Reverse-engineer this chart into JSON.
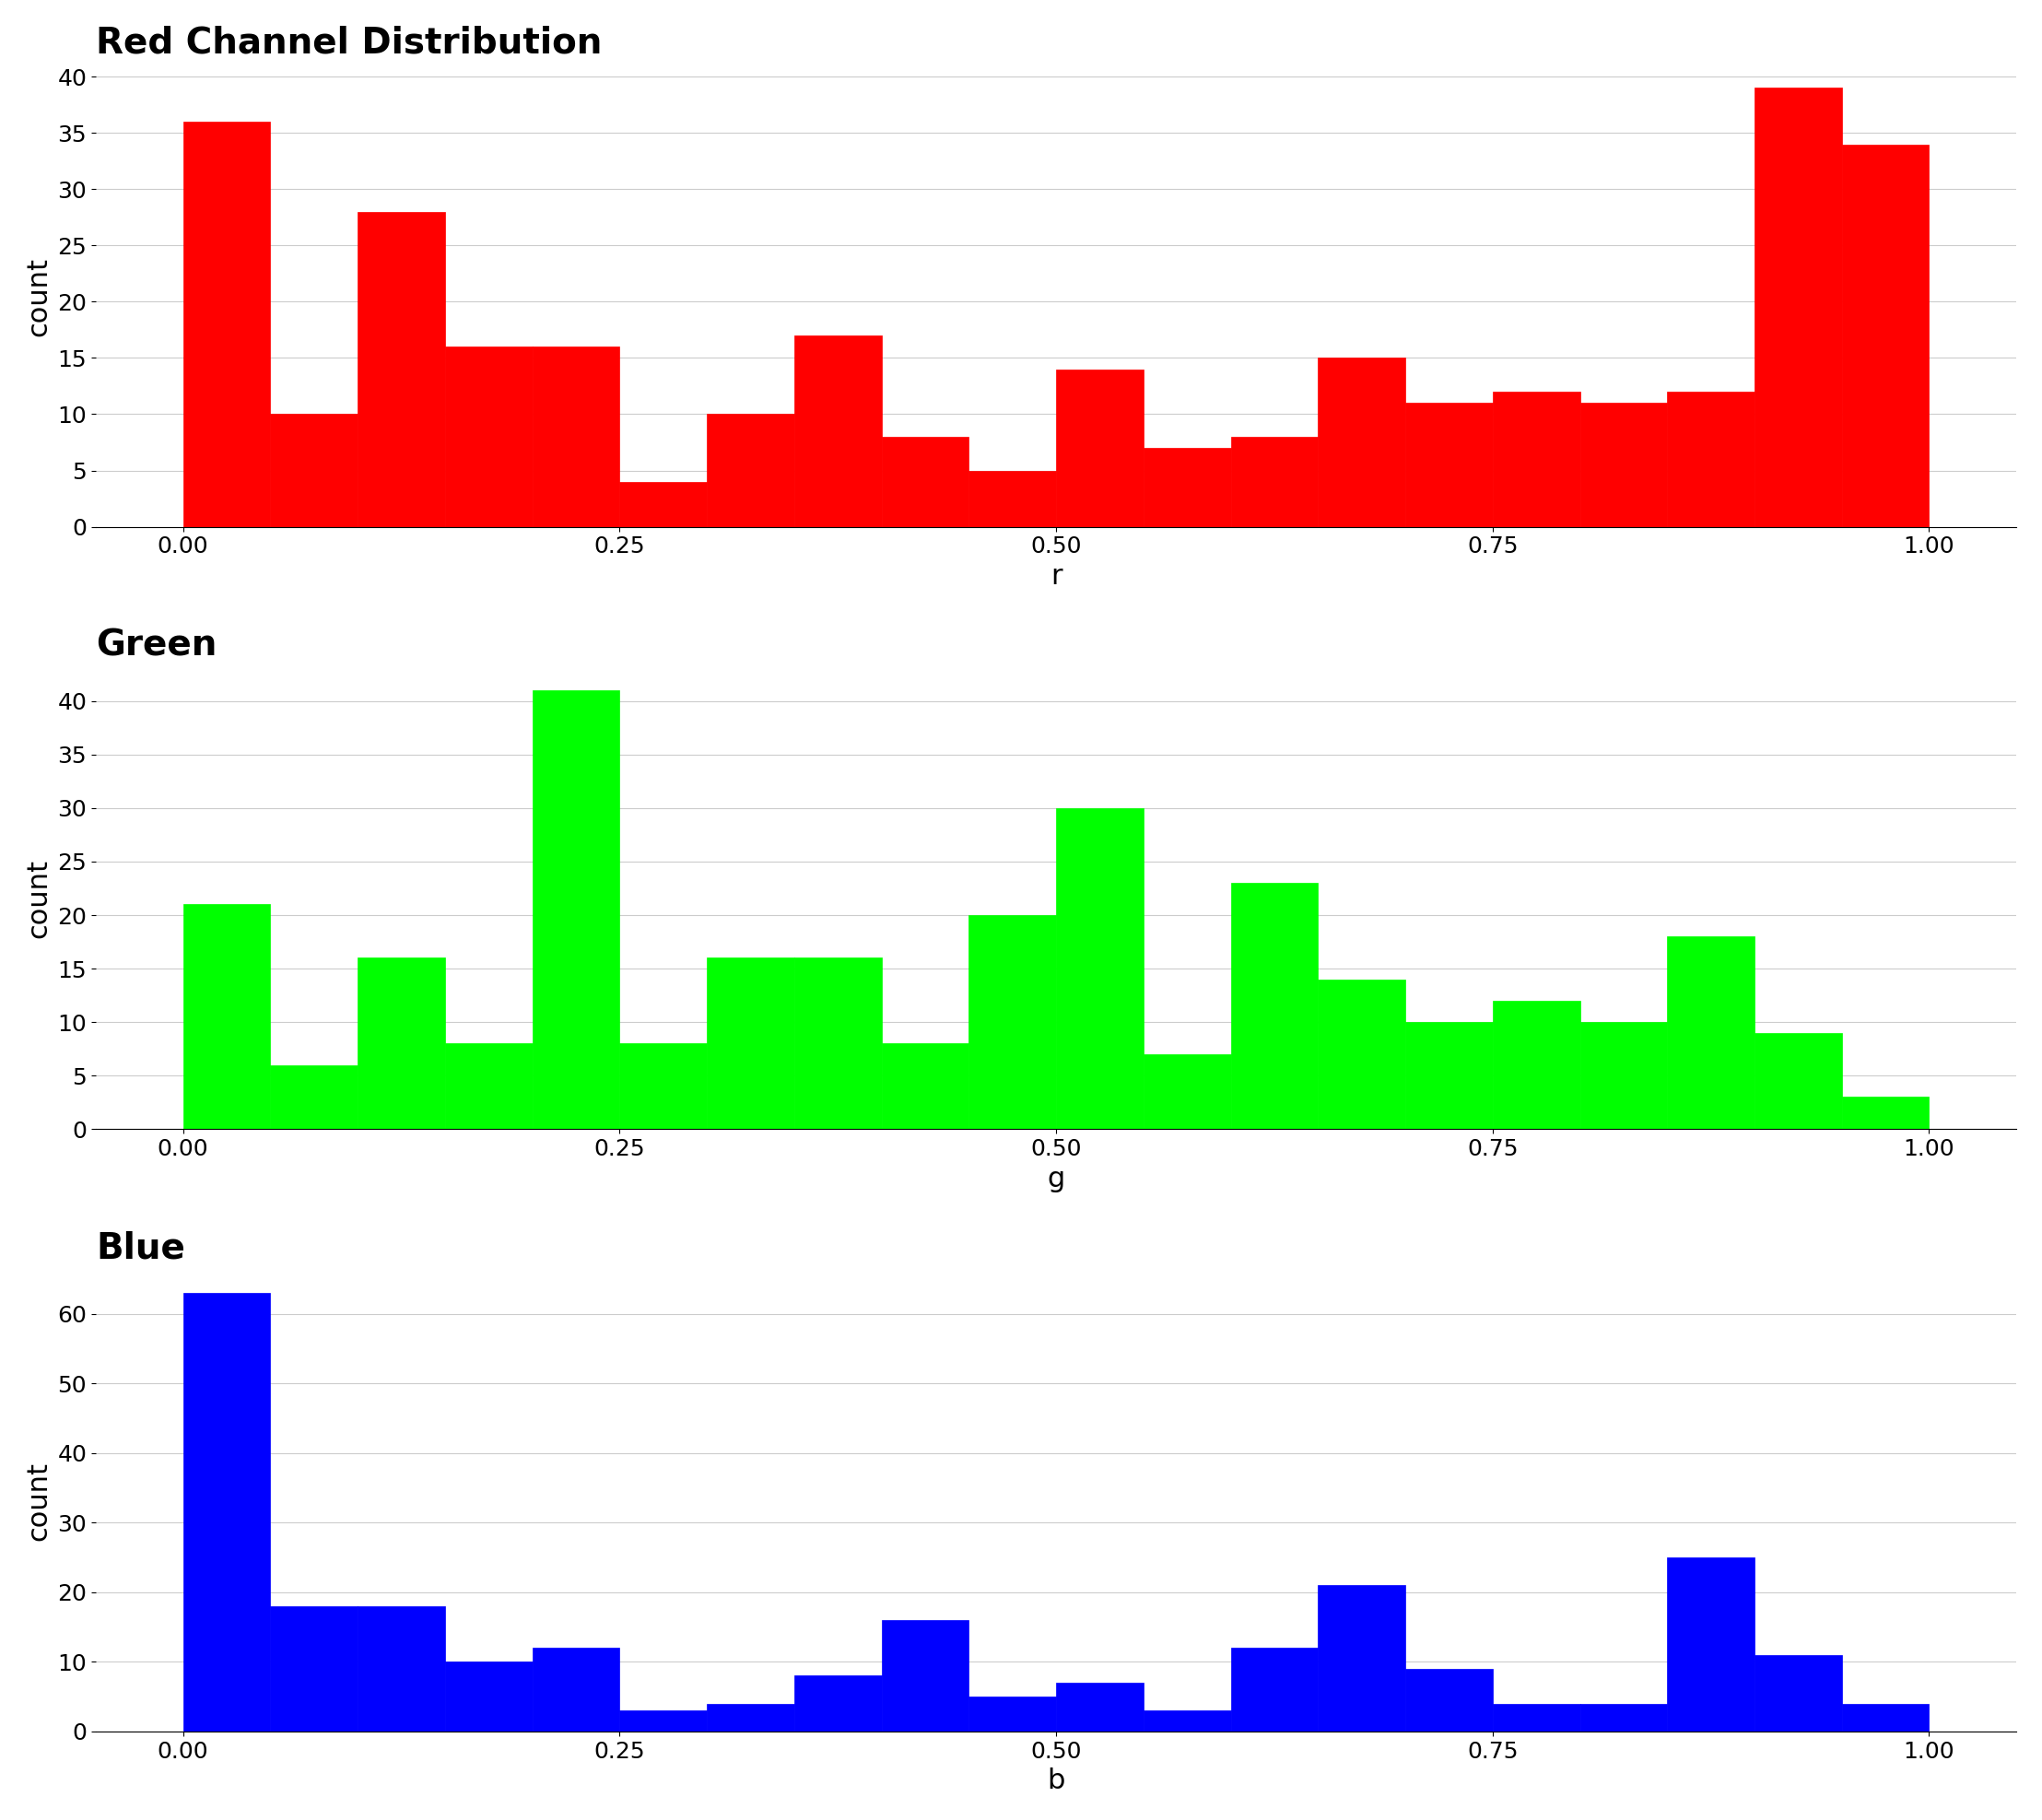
{
  "red": {
    "title": "Red Channel Distribution",
    "xlabel": "r",
    "ylabel": "count",
    "color": "#FF0000",
    "bin_edges": [
      0.0,
      0.05,
      0.1,
      0.15,
      0.2,
      0.25,
      0.3,
      0.35,
      0.4,
      0.45,
      0.5,
      0.55,
      0.6,
      0.65,
      0.7,
      0.75,
      0.8,
      0.85,
      0.9,
      0.95,
      1.0
    ],
    "counts": [
      36,
      10,
      28,
      16,
      16,
      4,
      10,
      17,
      8,
      5,
      14,
      7,
      8,
      15,
      11,
      12,
      11,
      12,
      39,
      34
    ]
  },
  "green": {
    "title": "Green",
    "xlabel": "g",
    "ylabel": "count",
    "color": "#00FF00",
    "bin_edges": [
      0.0,
      0.05,
      0.1,
      0.15,
      0.2,
      0.25,
      0.3,
      0.35,
      0.4,
      0.45,
      0.5,
      0.55,
      0.6,
      0.65,
      0.7,
      0.75,
      0.8,
      0.85,
      0.9,
      0.95,
      1.0
    ],
    "counts": [
      21,
      6,
      16,
      8,
      41,
      8,
      16,
      16,
      8,
      20,
      30,
      7,
      23,
      14,
      10,
      12,
      10,
      18,
      9,
      3
    ]
  },
  "blue": {
    "title": "Blue",
    "xlabel": "b",
    "ylabel": "count",
    "color": "#0000FF",
    "bin_edges": [
      0.0,
      0.05,
      0.1,
      0.15,
      0.2,
      0.25,
      0.3,
      0.35,
      0.4,
      0.45,
      0.5,
      0.55,
      0.6,
      0.65,
      0.7,
      0.75,
      0.8,
      0.85,
      0.9,
      0.95,
      1.0
    ],
    "counts": [
      63,
      18,
      18,
      10,
      12,
      3,
      4,
      8,
      16,
      5,
      7,
      3,
      12,
      21,
      9,
      4,
      4,
      25,
      11,
      4
    ]
  },
  "background_color": "#FFFFFF",
  "grid_color": "#CCCCCC",
  "title_fontsize": 28,
  "axis_label_fontsize": 22,
  "tick_fontsize": 18
}
